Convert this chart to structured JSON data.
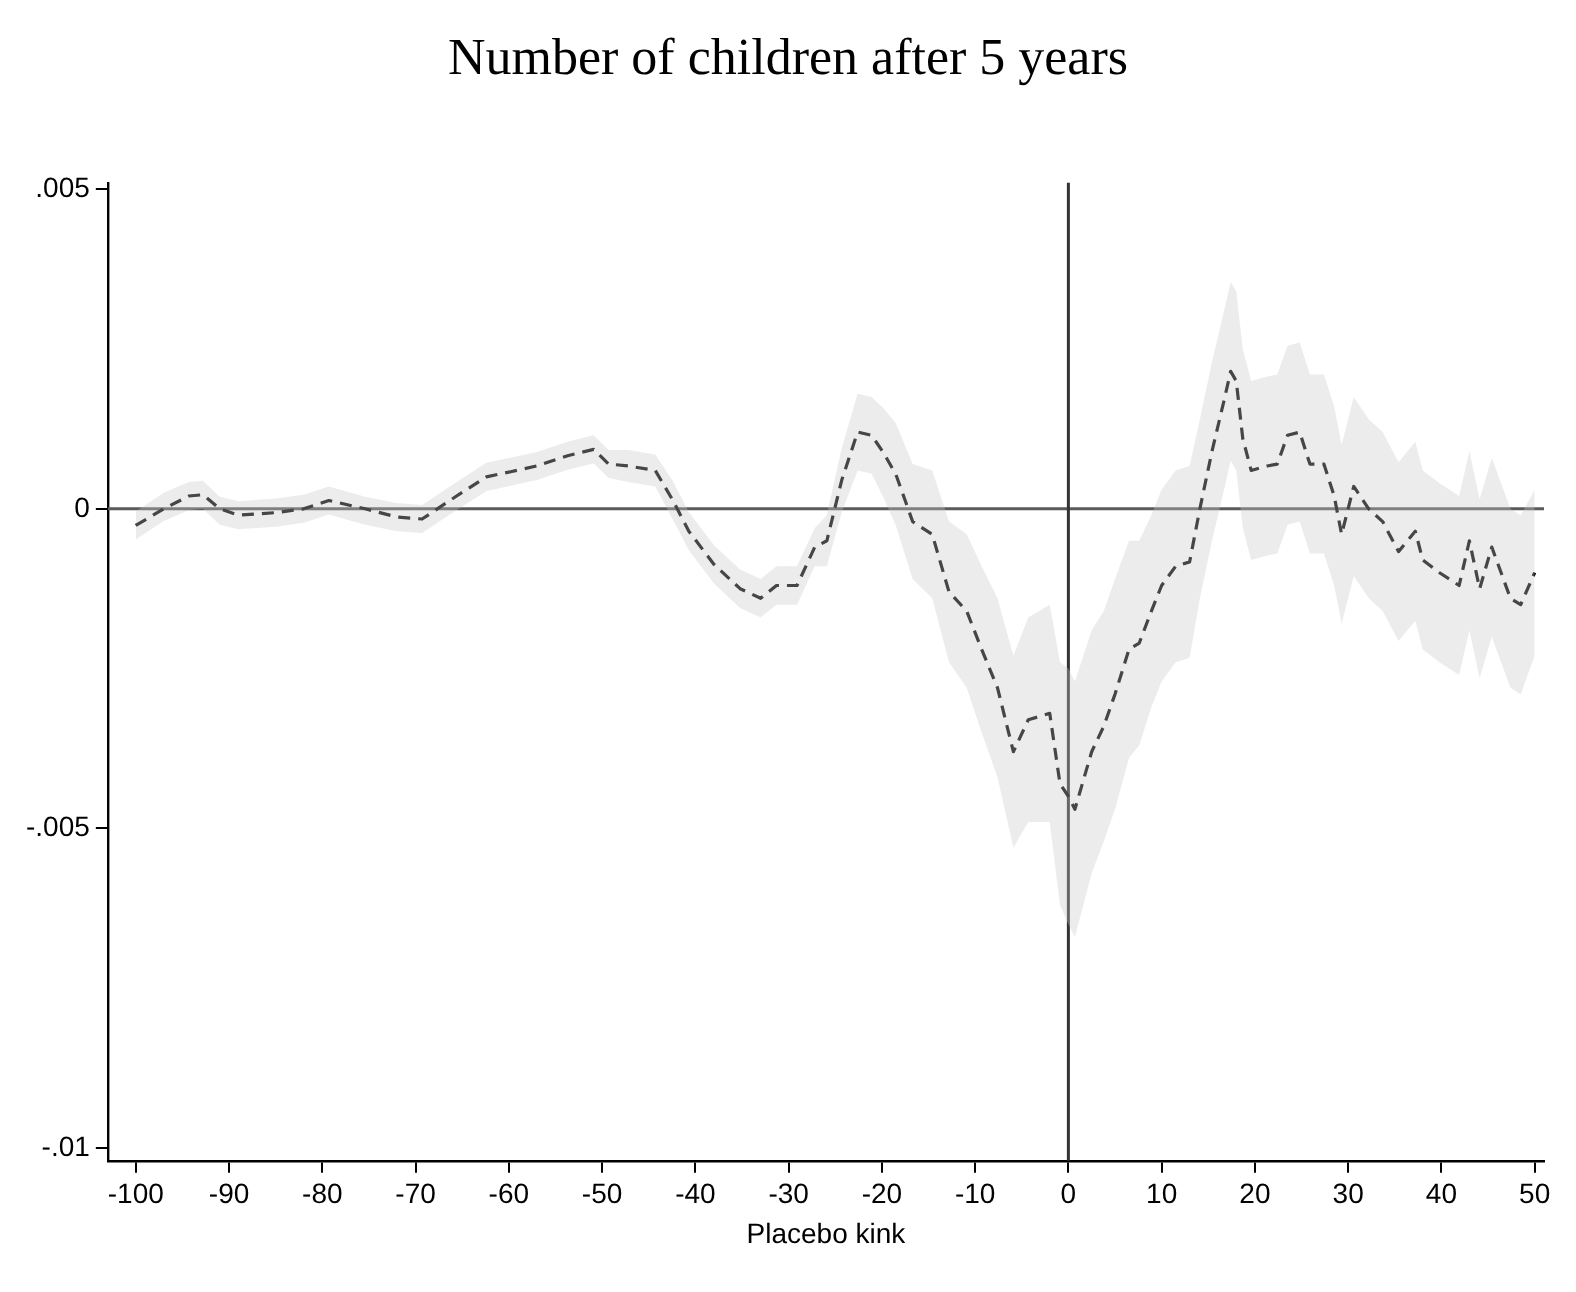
{
  "chart_data": {
    "type": "line",
    "title": "Number of children after 5 years",
    "xlabel": "Placebo kink",
    "xlim": [
      -103,
      51
    ],
    "xticks": [
      -100,
      -90,
      -80,
      -70,
      -60,
      -50,
      -40,
      -30,
      -20,
      -10,
      0,
      10,
      20,
      30,
      40,
      50
    ],
    "ylim": [
      -0.0102,
      0.0051
    ],
    "yticks": [
      {
        "value": -0.01,
        "label": "-.01"
      },
      {
        "value": -0.005,
        "label": "-.005"
      },
      0,
      {
        "value": 0.005,
        "label": ".005"
      }
    ],
    "grid": false,
    "legend": false,
    "marker": "none",
    "ref_lines": [
      {
        "axis": "y",
        "value": 0,
        "color": "#5a5a5a"
      },
      {
        "axis": "x",
        "value": 0,
        "color": "#333333"
      }
    ],
    "series": [
      {
        "color": "#000000",
        "line_style": "dashed",
        "x": [
          -100,
          -97,
          -94.3,
          -92.8,
          -91,
          -89,
          -85,
          -82,
          -79.3,
          -75.4,
          -72,
          -69.3,
          -65.6,
          -62.4,
          -59.8,
          -57,
          -53.7,
          -50.9,
          -49.3,
          -47.2,
          -44.3,
          -42.4,
          -40.7,
          -38,
          -35.2,
          -33,
          -31.3,
          -29.1,
          -27.2,
          -25.9,
          -24.3,
          -22.6,
          -21.1,
          -19.8,
          -18.5,
          -16.7,
          -14.6,
          -12.8,
          -10.9,
          -9.3,
          -7.6,
          -5.9,
          -4.3,
          -2,
          -0.9,
          0,
          0.7,
          2.5,
          3.8,
          5,
          6.5,
          7.6,
          8.9,
          10,
          11.5,
          13,
          14.1,
          15.4,
          16.7,
          17.4,
          18,
          18.7,
          19.6,
          21.3,
          22.4,
          23.5,
          24.8,
          25.9,
          27.4,
          28.5,
          29.3,
          30.6,
          32.2,
          33.7,
          35.4,
          37.2,
          38,
          39.8,
          41.9,
          43,
          44.1,
          45.4,
          47.4,
          48.5,
          50
        ],
        "values": [
          -0.00026,
          0,
          0.0002,
          0.00022,
          0,
          -0.0001,
          -6e-05,
          0,
          0.00013,
          0,
          -0.00013,
          -0.00016,
          0.0002,
          0.0005,
          0.00058,
          0.00067,
          0.00083,
          0.00093,
          0.0007,
          0.00067,
          0.0006,
          0.00013,
          -0.00035,
          -0.00087,
          -0.00125,
          -0.0014,
          -0.0012,
          -0.0012,
          -0.0006,
          -0.0005,
          0.00045,
          0.0012,
          0.00115,
          0.00087,
          0.00054,
          -0.0002,
          -0.0004,
          -0.0013,
          -0.0016,
          -0.0022,
          -0.0028,
          -0.0038,
          -0.0033,
          -0.0032,
          -0.0043,
          -0.0045,
          -0.0047,
          -0.0038,
          -0.0034,
          -0.0029,
          -0.0022,
          -0.0021,
          -0.0016,
          -0.0012,
          -0.0009,
          -0.00083,
          0,
          0.0009,
          0.0017,
          0.00215,
          0.002,
          0.0011,
          0.0006,
          0.00067,
          0.0007,
          0.00115,
          0.0012,
          0.0007,
          0.0007,
          0.0002,
          -0.0004,
          0.00035,
          0,
          -0.0002,
          -0.00067,
          -0.00035,
          -0.0008,
          -0.001,
          -0.0012,
          -0.0005,
          -0.00125,
          -0.0006,
          -0.0014,
          -0.0015,
          -0.001
        ],
        "lower": [
          -0.00048,
          -0.00019,
          -2e-05,
          0,
          -0.00025,
          -0.00032,
          -0.00028,
          -0.00022,
          -9e-05,
          -0.00025,
          -0.00035,
          -0.00038,
          -2e-05,
          0.00028,
          0.00036,
          0.00045,
          0.00061,
          0.00071,
          0.00048,
          0.00042,
          0.00035,
          -0.00017,
          -0.00065,
          -0.00117,
          -0.00155,
          -0.0017,
          -0.0015,
          -0.0015,
          -0.0009,
          -0.0009,
          -5e-05,
          0.0006,
          0.00055,
          0.00017,
          -0.00026,
          -0.0011,
          -0.0014,
          -0.0024,
          -0.0028,
          -0.0035,
          -0.0042,
          -0.0053,
          -0.0049,
          -0.0049,
          -0.0062,
          -0.0065,
          -0.0067,
          -0.0057,
          -0.0052,
          -0.0047,
          -0.0039,
          -0.0037,
          -0.0031,
          -0.0027,
          -0.0024,
          -0.00233,
          -0.0014,
          -0.0005,
          0.0003,
          0.00075,
          0.0006,
          -0.0003,
          -0.0008,
          -0.00073,
          -0.0007,
          -0.00025,
          -0.0002,
          -0.0007,
          -0.0007,
          -0.0012,
          -0.0018,
          -0.00105,
          -0.0014,
          -0.0016,
          -0.00207,
          -0.00175,
          -0.0022,
          -0.0024,
          -0.0026,
          -0.0019,
          -0.00265,
          -0.002,
          -0.0028,
          -0.0029,
          -0.0023
        ],
        "upper": [
          -4e-05,
          0.00025,
          0.00042,
          0.00044,
          0.00019,
          0.00012,
          0.00016,
          0.00022,
          0.00035,
          0.00019,
          9e-05,
          6e-05,
          0.00042,
          0.00072,
          0.0008,
          0.00089,
          0.00105,
          0.00115,
          0.00092,
          0.00092,
          0.00085,
          0.00043,
          -5e-05,
          -0.00057,
          -0.00095,
          -0.0011,
          -0.0009,
          -0.0009,
          -0.0003,
          -0.0001,
          0.00095,
          0.0018,
          0.00175,
          0.00157,
          0.00134,
          0.0007,
          0.0006,
          -0.0002,
          -0.0004,
          -0.0009,
          -0.0014,
          -0.0023,
          -0.0017,
          -0.0015,
          -0.0024,
          -0.0025,
          -0.0027,
          -0.0019,
          -0.0016,
          -0.0011,
          -0.0005,
          -0.0005,
          -0.0001,
          0.0003,
          0.0006,
          0.00067,
          0.0014,
          0.0023,
          0.0031,
          0.00355,
          0.0034,
          0.0025,
          0.002,
          0.00207,
          0.0021,
          0.00255,
          0.0026,
          0.0021,
          0.0021,
          0.0016,
          0.001,
          0.00175,
          0.0014,
          0.0012,
          0.00073,
          0.00105,
          0.0006,
          0.0004,
          0.0002,
          0.0009,
          0.00015,
          0.0008,
          0,
          -0.0001,
          0.0003
        ]
      }
    ]
  }
}
